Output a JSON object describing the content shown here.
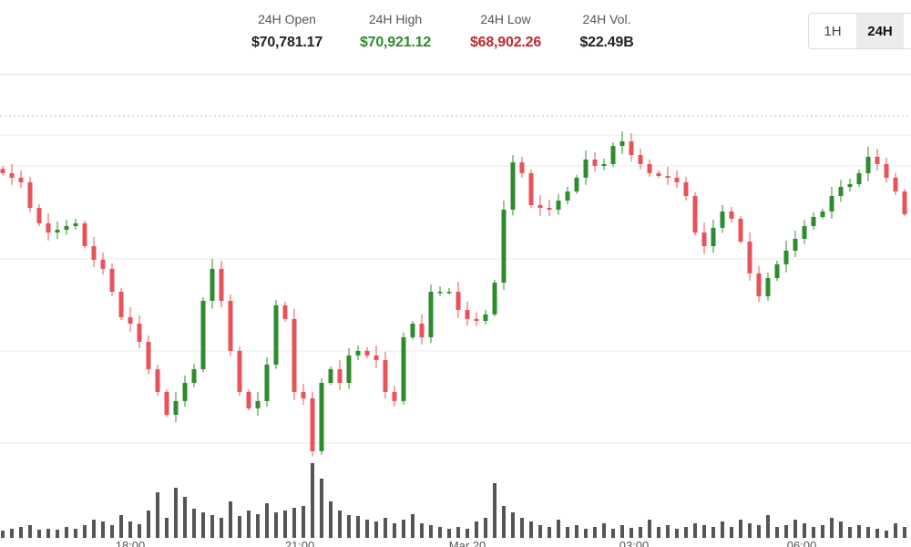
{
  "header": {
    "stats": [
      {
        "label": "24H Open",
        "value": "$70,781.17",
        "color": "#222222"
      },
      {
        "label": "24H High",
        "value": "$70,921.12",
        "color": "#2e8b2e"
      },
      {
        "label": "24H Low",
        "value": "$68,902.26",
        "color": "#c0282d"
      },
      {
        "label": "24H Vol.",
        "value": "$22.49B",
        "color": "#222222"
      }
    ],
    "range_toggle": {
      "options": [
        "1H",
        "24H"
      ],
      "selected": "24H"
    }
  },
  "chart_data": {
    "type": "candlestick",
    "title": "",
    "up_color": "#2e8b2e",
    "down_color": "#e8525a",
    "volume_color": "#555555",
    "ylim": [
      68875,
      71292
    ],
    "grid": true,
    "first_open": 70700,
    "closes": [
      70674,
      70646,
      70618,
      70460,
      70365,
      70308,
      70325,
      70348,
      70365,
      70224,
      70140,
      70084,
      69943,
      69786,
      69746,
      69634,
      69465,
      69325,
      69184,
      69269,
      69381,
      69465,
      69887,
      70084,
      69887,
      69578,
      69325,
      69224,
      69269,
      69494,
      69859,
      69775,
      69325,
      69286,
      68960,
      69381,
      69465,
      69381,
      69550,
      69578,
      69550,
      69522,
      69325,
      69269,
      69662,
      69746,
      69662,
      69943,
      69943,
      69943,
      69831,
      69775,
      69763,
      69803,
      69999,
      70449,
      70741,
      70674,
      70477,
      70460,
      70449,
      70505,
      70561,
      70646,
      70758,
      70719,
      70730,
      70842,
      70870,
      70786,
      70730,
      70674,
      70657,
      70646,
      70618,
      70533,
      70308,
      70224,
      70337,
      70438,
      70393,
      70252,
      70056,
      69915,
      70027,
      70112,
      70196,
      70269,
      70348,
      70404,
      70438,
      70533,
      70589,
      70606,
      70674,
      70775,
      70730,
      70646,
      70561,
      70421
    ],
    "volumes": [
      8,
      10,
      12,
      14,
      9,
      10,
      9,
      12,
      10,
      14,
      20,
      18,
      14,
      25,
      18,
      15,
      30,
      50,
      22,
      55,
      45,
      32,
      28,
      25,
      22,
      40,
      24,
      30,
      26,
      38,
      28,
      30,
      33,
      35,
      82,
      65,
      40,
      30,
      25,
      24,
      20,
      18,
      22,
      16,
      20,
      26,
      16,
      14,
      12,
      10,
      12,
      10,
      18,
      22,
      60,
      35,
      28,
      22,
      18,
      14,
      12,
      20,
      12,
      14,
      10,
      12,
      16,
      10,
      14,
      11,
      12,
      20,
      12,
      14,
      10,
      12,
      16,
      14,
      12,
      18,
      12,
      20,
      16,
      14,
      25,
      12,
      14,
      20,
      16,
      12,
      14,
      22,
      18,
      12,
      14,
      12,
      10,
      8,
      16,
      12
    ],
    "x_ticks": [
      {
        "label": "18:00",
        "index": 14
      },
      {
        "label": "21:00",
        "index": 32.6
      },
      {
        "label": "Mar 20",
        "index": 51
      },
      {
        "label": "03:00",
        "index": 69.3
      },
      {
        "label": "06:00",
        "index": 87.7
      }
    ]
  }
}
